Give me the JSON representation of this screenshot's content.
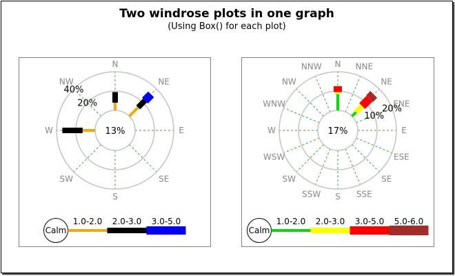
{
  "header": {
    "title": "Two windrose plots in one graph",
    "subtitle": "(Using Box() for each plot)"
  },
  "chart_data": [
    {
      "type": "windrose",
      "position": "left",
      "center_label": "13%",
      "ring_step_percent": 20,
      "ring_labels": [
        "20%",
        "40%"
      ],
      "ring_label_direction": "NW",
      "direction_labels": [
        "N",
        "NE",
        "E",
        "SE",
        "S",
        "SW",
        "W",
        "NW"
      ],
      "calm_label": "Calm",
      "bins": [
        {
          "label": "1.0-2.0",
          "color": "#FFA500"
        },
        {
          "label": "2.0-3.0",
          "color": "#000000"
        },
        {
          "label": "3.0-5.0",
          "color": "#0000FF"
        }
      ],
      "bars": [
        {
          "direction": "N",
          "segments": [
            {
              "bin": "1.0-2.0",
              "percent": 8
            },
            {
              "bin": "2.0-3.0",
              "percent": 11
            }
          ]
        },
        {
          "direction": "NE",
          "segments": [
            {
              "bin": "1.0-2.0",
              "percent": 13
            },
            {
              "bin": "2.0-3.0",
              "percent": 10
            },
            {
              "bin": "3.0-5.0",
              "percent": 9
            }
          ]
        },
        {
          "direction": "W",
          "segments": [
            {
              "bin": "1.0-2.0",
              "percent": 13
            },
            {
              "bin": "2.0-3.0",
              "percent": 21
            }
          ]
        }
      ]
    },
    {
      "type": "windrose",
      "position": "right",
      "center_label": "17%",
      "ring_step_percent": 10,
      "ring_labels": [
        "10%",
        "20%"
      ],
      "ring_label_direction": "ENE",
      "direction_labels": [
        "N",
        "NNE",
        "NE",
        "ENE",
        "E",
        "ESE",
        "SE",
        "SSE",
        "S",
        "SSW",
        "SW",
        "WSW",
        "W",
        "WNW",
        "NW",
        "NNW"
      ],
      "calm_label": "Calm",
      "bins": [
        {
          "label": "1.0-2.0",
          "color": "#00E000"
        },
        {
          "label": "2.0-3.0",
          "color": "#FFFF00"
        },
        {
          "label": "3.0-5.0",
          "color": "#FF0000"
        },
        {
          "label": "5.0-6.0",
          "color": "#A52A2A"
        }
      ],
      "bars": [
        {
          "direction": "N",
          "segments": [
            {
              "bin": "1.0-2.0",
              "percent": 8.5
            },
            {
              "bin": "2.0-3.0",
              "percent": 1
            },
            {
              "bin": "3.0-5.0",
              "percent": 3
            }
          ]
        },
        {
          "direction": "NE",
          "segments": [
            {
              "bin": "1.0-2.0",
              "percent": 3
            },
            {
              "bin": "2.0-3.0",
              "percent": 4.5
            },
            {
              "bin": "3.0-5.0",
              "percent": 5.5
            },
            {
              "bin": "5.0-6.0",
              "percent": 3
            }
          ]
        }
      ]
    }
  ],
  "style": {
    "ring_color": "#C4C4C4",
    "spoke_color": "#3FA03F",
    "direction_label_color": "#878787",
    "text_color": "#000000",
    "box_border_color": "#808080"
  }
}
